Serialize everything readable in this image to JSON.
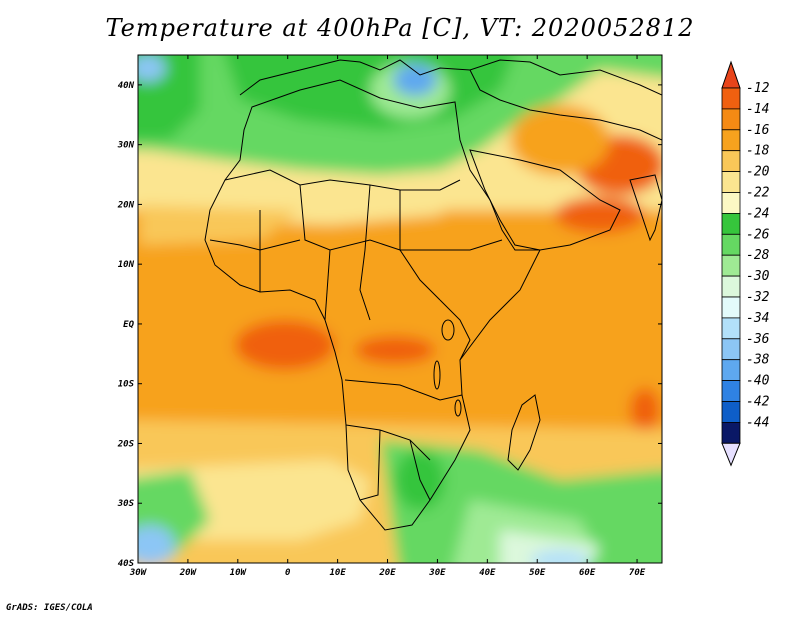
{
  "title": "Temperature at 400hPa [C], VT: 2020052812",
  "credit": "GrADS: IGES/COLA",
  "map": {
    "region": "Africa",
    "lon_range": [
      -30,
      75
    ],
    "lat_range": [
      -40,
      45
    ],
    "lon_ticks": [
      {
        "value": -30,
        "label": "30W"
      },
      {
        "value": -20,
        "label": "20W"
      },
      {
        "value": -10,
        "label": "10W"
      },
      {
        "value": 0,
        "label": "0"
      },
      {
        "value": 10,
        "label": "10E"
      },
      {
        "value": 20,
        "label": "20E"
      },
      {
        "value": 30,
        "label": "30E"
      },
      {
        "value": 40,
        "label": "40E"
      },
      {
        "value": 50,
        "label": "50E"
      },
      {
        "value": 60,
        "label": "60E"
      },
      {
        "value": 70,
        "label": "70E"
      }
    ],
    "lat_ticks": [
      {
        "value": 40,
        "label": "40N"
      },
      {
        "value": 30,
        "label": "30N"
      },
      {
        "value": 20,
        "label": "20N"
      },
      {
        "value": 10,
        "label": "10N"
      },
      {
        "value": 0,
        "label": "EQ"
      },
      {
        "value": -10,
        "label": "10S"
      },
      {
        "value": -20,
        "label": "20S"
      },
      {
        "value": -30,
        "label": "30S"
      },
      {
        "value": -40,
        "label": "40S"
      }
    ]
  },
  "colorbar": {
    "levels": [
      {
        "label": "-12",
        "color": "#f06010"
      },
      {
        "label": "-14",
        "color": "#f58a14"
      },
      {
        "label": "-16",
        "color": "#f7a21e"
      },
      {
        "label": "-18",
        "color": "#f9c758"
      },
      {
        "label": "-20",
        "color": "#fbe590"
      },
      {
        "label": "-22",
        "color": "#fcf8c4"
      },
      {
        "label": "-24",
        "color": "#36c53c"
      },
      {
        "label": "-26",
        "color": "#65d862"
      },
      {
        "label": "-28",
        "color": "#9fea94"
      },
      {
        "label": "-30",
        "color": "#dcf8dc"
      },
      {
        "label": "-32",
        "color": "#e3fbfb"
      },
      {
        "label": "-34",
        "color": "#b2e0f9"
      },
      {
        "label": "-36",
        "color": "#8cc6f5"
      },
      {
        "label": "-38",
        "color": "#5ea8ef"
      },
      {
        "label": "-40",
        "color": "#2f82e3"
      },
      {
        "label": "-42",
        "color": "#0e5ec8"
      },
      {
        "label": "-44",
        "color": "#0f2b8c"
      }
    ],
    "top_arrow_color": "#e8441a",
    "bottom_arrow_color": "#e6e0ff",
    "bottom_cell_color": "#0a1866"
  }
}
